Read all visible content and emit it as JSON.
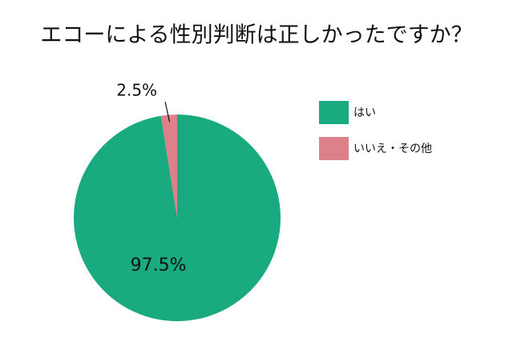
{
  "chart_data": {
    "type": "pie",
    "title": "エコーによる性別判断は正しかったですか？",
    "categories": [
      "はい",
      "いいえ・その他"
    ],
    "values": [
      97.5,
      2.5
    ],
    "value_labels": [
      "97.5%",
      "2.5%"
    ],
    "colors": [
      "#1aaa80",
      "#dc808a"
    ],
    "legend": "right"
  }
}
